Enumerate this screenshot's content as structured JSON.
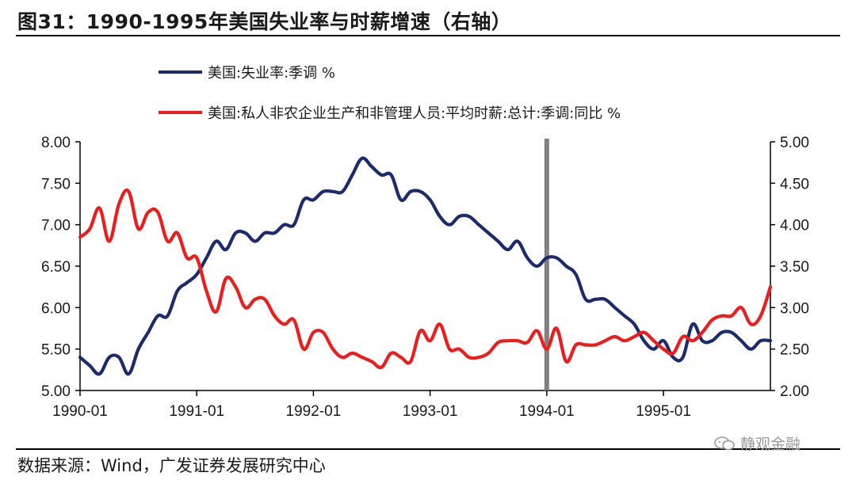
{
  "title": "图31：1990-1995年美国失业率与时薪增速（右轴）",
  "source": "数据来源：Wind，广发证券发展研究中心",
  "watermark": "静观金融",
  "chart_data": {
    "type": "line",
    "x_tick_labels": [
      "1990-01",
      "1991-01",
      "1992-01",
      "1993-01",
      "1994-01",
      "1995-01"
    ],
    "left_axis": {
      "ylim": [
        5.0,
        8.0
      ],
      "ticks": [
        "5.00",
        "5.50",
        "6.00",
        "6.50",
        "7.00",
        "7.50",
        "8.00"
      ]
    },
    "right_axis": {
      "ylim": [
        2.0,
        5.0
      ],
      "ticks": [
        "2.00",
        "2.50",
        "3.00",
        "3.50",
        "4.00",
        "4.50",
        "5.00"
      ]
    },
    "marker_line": {
      "x": "1994-01",
      "color": "#808080"
    },
    "series": [
      {
        "name": "美国:失业率:季调 %",
        "axis": "left",
        "color": "#1c2b6b",
        "x": [
          "1990-01",
          "1990-02",
          "1990-03",
          "1990-04",
          "1990-05",
          "1990-06",
          "1990-07",
          "1990-08",
          "1990-09",
          "1990-10",
          "1990-11",
          "1990-12",
          "1991-01",
          "1991-02",
          "1991-03",
          "1991-04",
          "1991-05",
          "1991-06",
          "1991-07",
          "1991-08",
          "1991-09",
          "1991-10",
          "1991-11",
          "1991-12",
          "1992-01",
          "1992-02",
          "1992-03",
          "1992-04",
          "1992-05",
          "1992-06",
          "1992-07",
          "1992-08",
          "1992-09",
          "1992-10",
          "1992-11",
          "1992-12",
          "1993-01",
          "1993-02",
          "1993-03",
          "1993-04",
          "1993-05",
          "1993-06",
          "1993-07",
          "1993-08",
          "1993-09",
          "1993-10",
          "1993-11",
          "1993-12",
          "1994-01",
          "1994-02",
          "1994-03",
          "1994-04",
          "1994-05",
          "1994-06",
          "1994-07",
          "1994-08",
          "1994-09",
          "1994-10",
          "1994-11",
          "1994-12",
          "1995-01",
          "1995-02",
          "1995-03",
          "1995-04",
          "1995-05",
          "1995-06",
          "1995-07",
          "1995-08",
          "1995-09",
          "1995-10",
          "1995-11",
          "1995-12"
        ],
        "values": [
          5.4,
          5.3,
          5.2,
          5.4,
          5.4,
          5.2,
          5.5,
          5.7,
          5.9,
          5.9,
          6.2,
          6.3,
          6.4,
          6.6,
          6.8,
          6.7,
          6.9,
          6.9,
          6.8,
          6.9,
          6.9,
          7.0,
          7.0,
          7.3,
          7.3,
          7.4,
          7.4,
          7.4,
          7.6,
          7.8,
          7.7,
          7.6,
          7.6,
          7.3,
          7.4,
          7.4,
          7.3,
          7.1,
          7.0,
          7.1,
          7.1,
          7.0,
          6.9,
          6.8,
          6.7,
          6.8,
          6.6,
          6.5,
          6.6,
          6.6,
          6.5,
          6.4,
          6.1,
          6.1,
          6.1,
          6.0,
          5.9,
          5.8,
          5.6,
          5.5,
          5.6,
          5.4,
          5.4,
          5.8,
          5.6,
          5.6,
          5.7,
          5.7,
          5.6,
          5.5,
          5.6,
          5.6
        ]
      },
      {
        "name": "美国:私人非农企业生产和非管理人员:平均时薪:总计:季调:同比 %",
        "axis": "right",
        "color": "#ee1c1c",
        "x": [
          "1990-01",
          "1990-02",
          "1990-03",
          "1990-04",
          "1990-05",
          "1990-06",
          "1990-07",
          "1990-08",
          "1990-09",
          "1990-10",
          "1990-11",
          "1990-12",
          "1991-01",
          "1991-02",
          "1991-03",
          "1991-04",
          "1991-05",
          "1991-06",
          "1991-07",
          "1991-08",
          "1991-09",
          "1991-10",
          "1991-11",
          "1991-12",
          "1992-01",
          "1992-02",
          "1992-03",
          "1992-04",
          "1992-05",
          "1992-06",
          "1992-07",
          "1992-08",
          "1992-09",
          "1992-10",
          "1992-11",
          "1992-12",
          "1993-01",
          "1993-02",
          "1993-03",
          "1993-04",
          "1993-05",
          "1993-06",
          "1993-07",
          "1993-08",
          "1993-09",
          "1993-10",
          "1993-11",
          "1993-12",
          "1994-01",
          "1994-02",
          "1994-03",
          "1994-04",
          "1994-05",
          "1994-06",
          "1994-07",
          "1994-08",
          "1994-09",
          "1994-10",
          "1994-11",
          "1994-12",
          "1995-01",
          "1995-02",
          "1995-03",
          "1995-04",
          "1995-05",
          "1995-06",
          "1995-07",
          "1995-08",
          "1995-09",
          "1995-10",
          "1995-11",
          "1995-12"
        ],
        "values": [
          3.85,
          3.95,
          4.2,
          3.8,
          4.25,
          4.4,
          3.95,
          4.15,
          4.15,
          3.8,
          3.9,
          3.6,
          3.6,
          3.2,
          2.95,
          3.35,
          3.25,
          3.0,
          3.1,
          3.1,
          2.9,
          2.8,
          2.85,
          2.5,
          2.7,
          2.7,
          2.5,
          2.4,
          2.45,
          2.4,
          2.35,
          2.28,
          2.45,
          2.4,
          2.35,
          2.72,
          2.6,
          2.8,
          2.5,
          2.5,
          2.4,
          2.4,
          2.45,
          2.58,
          2.6,
          2.6,
          2.58,
          2.72,
          2.5,
          2.75,
          2.35,
          2.55,
          2.55,
          2.55,
          2.6,
          2.65,
          2.6,
          2.65,
          2.7,
          2.6,
          2.5,
          2.45,
          2.65,
          2.6,
          2.7,
          2.85,
          2.9,
          2.9,
          3.0,
          2.8,
          2.9,
          3.25
        ]
      }
    ]
  }
}
